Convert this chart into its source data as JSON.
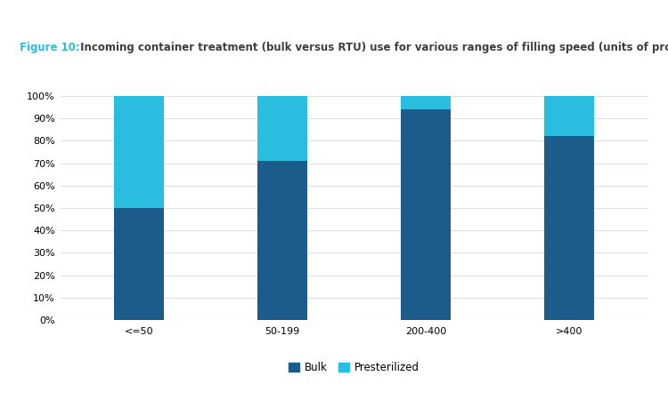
{
  "categories": [
    "<=50",
    "50-199",
    "200-400",
    ">400"
  ],
  "bulk_values": [
    50,
    71,
    94,
    82
  ],
  "presterilized_values": [
    50,
    29,
    6,
    18
  ],
  "bulk_color": "#1b5c8a",
  "presterilized_color": "#29bde0",
  "figure_label": "Figure 10:",
  "figure_label_color": "#29bde0",
  "title_text": " Incoming container treatment (bulk versus RTU) use for various ranges of filling speed (units of production per minute).",
  "title_color": "#3d3d3d",
  "legend_labels": [
    "Bulk",
    "Presterilized"
  ],
  "ylim": [
    0,
    100
  ],
  "ytick_values": [
    0,
    10,
    20,
    30,
    40,
    50,
    60,
    70,
    80,
    90,
    100
  ],
  "background_color": "#ffffff",
  "bar_width": 0.35,
  "grid_color": "#e0e0e0",
  "tick_fontsize": 8,
  "legend_fontsize": 8.5,
  "title_fontsize": 8.5
}
